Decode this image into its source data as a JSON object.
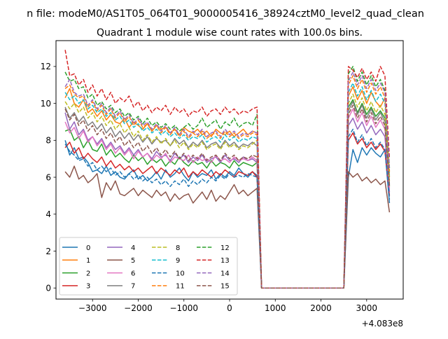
{
  "chart_data": {
    "type": "line",
    "suptitle": "n file: modeM0/AS1T05_064T01_9000005416_38924cztM0_level2_quad_clean",
    "title": "Quadrant 1 module wise count rates with 100.0s bins.",
    "xlabel": "",
    "ylabel": "",
    "x_offset_label": "+4.083e8",
    "xlim": [
      -3800,
      3800
    ],
    "ylim": [
      -0.6,
      13.4
    ],
    "xticks": [
      -3000,
      -2000,
      -1000,
      0,
      1000,
      2000,
      3000
    ],
    "xtick_labels": [
      "−3000",
      "−2000",
      "−1000",
      "0",
      "1000",
      "2000",
      "3000"
    ],
    "yticks": [
      0,
      2,
      4,
      6,
      8,
      10,
      12
    ],
    "ytick_labels": [
      "0",
      "2",
      "4",
      "6",
      "8",
      "10",
      "12"
    ],
    "legend": {
      "location": "lower-left",
      "columns": 4
    },
    "x": {
      "first_start": -3600,
      "first_step": 100,
      "first_count": 43,
      "gap_x": [
        700,
        800,
        900,
        1000,
        1100,
        1200,
        1300,
        1400,
        1500,
        1600,
        1700,
        1800,
        1900,
        2000,
        2100,
        2200,
        2300,
        2400,
        2500
      ],
      "second_start": 2600,
      "second_step": 100,
      "second_count": 10
    },
    "series": [
      {
        "name": "0",
        "color": "#1f77b4",
        "dash": "solid",
        "first": [
          8.0,
          7.2,
          7.6,
          7.0,
          7.1,
          6.8,
          6.3,
          6.4,
          6.2,
          6.6,
          6.1,
          6.3,
          6.0,
          5.9,
          6.2,
          6.4,
          5.9,
          6.1,
          5.8,
          6.0,
          6.3,
          5.9,
          6.4,
          6.0,
          6.2,
          6.5,
          6.1,
          5.8,
          6.3,
          6.0,
          6.2,
          6.1,
          6.4,
          5.9,
          6.2,
          6.0,
          6.3,
          6.1,
          6.5,
          6.2,
          6.0,
          6.3,
          6.1
        ],
        "second": [
          6.0,
          7.5,
          6.8,
          7.6,
          7.2,
          7.6,
          7.3,
          7.1,
          7.5,
          4.6
        ]
      },
      {
        "name": "1",
        "color": "#ff7f0e",
        "dash": "solid",
        "first": [
          10.3,
          10.8,
          10.0,
          9.8,
          10.2,
          9.5,
          9.7,
          9.3,
          9.6,
          9.1,
          9.4,
          9.0,
          8.9,
          9.2,
          8.7,
          9.0,
          8.8,
          8.6,
          8.9,
          8.5,
          8.8,
          8.6,
          8.7,
          8.4,
          8.6,
          8.3,
          8.7,
          8.5,
          8.4,
          8.6,
          8.3,
          8.5,
          8.2,
          8.6,
          8.4,
          8.3,
          8.5,
          8.2,
          8.4,
          8.6,
          8.3,
          8.5,
          8.4
        ],
        "second": [
          10.4,
          10.9,
          10.2,
          10.7,
          10.0,
          10.6,
          10.1,
          9.8,
          10.3,
          6.0
        ]
      },
      {
        "name": "2",
        "color": "#2ca02c",
        "dash": "solid",
        "first": [
          8.5,
          8.6,
          8.0,
          8.2,
          7.6,
          8.0,
          7.5,
          7.4,
          7.8,
          7.2,
          7.5,
          7.1,
          7.3,
          7.0,
          6.8,
          7.2,
          6.9,
          7.1,
          6.7,
          7.0,
          6.8,
          7.0,
          6.6,
          6.9,
          6.7,
          7.1,
          6.8,
          6.6,
          6.9,
          6.7,
          6.8,
          6.5,
          6.9,
          6.6,
          6.8,
          6.7,
          6.5,
          6.9,
          6.6,
          6.8,
          6.7,
          6.6,
          6.8
        ],
        "second": [
          9.8,
          10.2,
          9.5,
          10.0,
          9.4,
          9.8,
          9.3,
          9.6,
          9.2,
          5.5
        ]
      },
      {
        "name": "3",
        "color": "#d62728",
        "dash": "solid",
        "first": [
          7.6,
          7.9,
          7.3,
          7.6,
          7.0,
          7.3,
          7.0,
          6.8,
          7.1,
          6.6,
          6.9,
          6.5,
          6.7,
          6.4,
          6.6,
          6.3,
          6.5,
          6.2,
          6.4,
          6.6,
          6.2,
          6.5,
          6.3,
          6.1,
          6.4,
          6.2,
          6.5,
          6.0,
          6.3,
          6.1,
          6.4,
          6.2,
          6.0,
          6.3,
          6.1,
          6.4,
          6.2,
          6.0,
          6.3,
          6.2,
          6.1,
          6.3,
          6.0
        ],
        "second": [
          8.0,
          8.4,
          7.8,
          8.1,
          7.6,
          7.9,
          7.5,
          7.8,
          7.4,
          5.0
        ]
      },
      {
        "name": "4",
        "color": "#9467bd",
        "dash": "solid",
        "first": [
          9.5,
          8.6,
          9.0,
          8.3,
          8.6,
          8.0,
          8.2,
          7.8,
          8.1,
          7.6,
          7.9,
          7.5,
          7.7,
          7.3,
          7.6,
          7.2,
          7.5,
          7.1,
          7.3,
          7.0,
          7.4,
          7.1,
          7.2,
          6.9,
          7.3,
          7.0,
          7.2,
          6.8,
          7.1,
          6.9,
          7.2,
          6.8,
          7.0,
          7.1,
          6.8,
          7.2,
          6.9,
          7.0,
          6.8,
          7.1,
          6.9,
          7.0,
          6.8
        ],
        "second": [
          8.8,
          9.2,
          8.6,
          9.0,
          8.4,
          8.8,
          8.3,
          8.6,
          8.2,
          5.2
        ]
      },
      {
        "name": "5",
        "color": "#8c564b",
        "dash": "solid",
        "first": [
          6.3,
          6.0,
          6.6,
          5.9,
          6.1,
          5.7,
          5.9,
          6.2,
          4.9,
          5.7,
          5.3,
          5.8,
          5.1,
          5.0,
          5.2,
          5.4,
          5.0,
          5.3,
          5.1,
          4.9,
          5.3,
          5.0,
          5.2,
          4.7,
          5.1,
          4.8,
          5.0,
          5.1,
          4.6,
          4.9,
          5.2,
          4.8,
          5.3,
          4.7,
          5.0,
          4.8,
          5.2,
          5.6,
          5.1,
          5.3,
          5.0,
          5.2,
          5.4
        ],
        "second": [
          6.3,
          6.0,
          6.2,
          5.8,
          6.0,
          5.7,
          5.9,
          5.6,
          5.8,
          4.1
        ]
      },
      {
        "name": "6",
        "color": "#e377c2",
        "dash": "solid",
        "first": [
          9.0,
          8.4,
          8.7,
          8.1,
          8.5,
          7.9,
          8.2,
          7.7,
          8.0,
          7.5,
          7.8,
          7.3,
          7.6,
          7.2,
          7.5,
          7.0,
          7.4,
          7.1,
          7.3,
          6.9,
          7.2,
          7.0,
          7.3,
          6.8,
          7.1,
          7.0,
          6.9,
          7.2,
          6.8,
          7.1,
          6.9,
          7.0,
          6.8,
          7.2,
          6.9,
          7.0,
          6.8,
          7.1,
          6.9,
          7.0,
          6.9,
          7.1,
          6.9
        ],
        "second": [
          9.2,
          9.7,
          9.0,
          9.5,
          8.8,
          9.3,
          8.7,
          9.1,
          8.6,
          5.4
        ]
      },
      {
        "name": "7",
        "color": "#7f7f7f",
        "dash": "solid",
        "first": [
          9.8,
          9.2,
          9.5,
          9.0,
          9.3,
          8.8,
          9.0,
          8.6,
          8.9,
          8.4,
          8.7,
          8.2,
          8.5,
          8.1,
          8.4,
          8.0,
          8.3,
          7.9,
          8.2,
          7.8,
          8.1,
          7.9,
          8.0,
          7.7,
          8.1,
          7.8,
          8.0,
          7.6,
          7.9,
          7.7,
          8.0,
          7.6,
          7.8,
          7.9,
          7.6,
          8.0,
          7.7,
          7.9,
          7.6,
          7.8,
          7.7,
          7.9,
          7.7
        ],
        "second": [
          9.6,
          10.1,
          9.4,
          9.9,
          9.2,
          9.7,
          9.1,
          9.5,
          9.0,
          5.6
        ]
      },
      {
        "name": "8",
        "color": "#bcbd22",
        "dash": "dashed",
        "first": [
          10.1,
          9.7,
          10.0,
          9.5,
          9.8,
          9.2,
          9.5,
          9.0,
          9.3,
          8.8,
          9.1,
          8.6,
          8.9,
          8.4,
          8.7,
          8.2,
          8.5,
          8.0,
          8.3,
          7.9,
          8.2,
          7.8,
          8.1,
          7.7,
          8.0,
          7.6,
          7.9,
          7.5,
          7.8,
          7.6,
          7.9,
          7.5,
          7.7,
          7.8,
          7.5,
          7.9,
          7.6,
          7.8,
          7.5,
          7.7,
          7.6,
          7.8,
          8.0
        ],
        "second": [
          10.0,
          10.5,
          9.8,
          10.3,
          9.6,
          10.1,
          9.5,
          9.9,
          9.4,
          5.8
        ]
      },
      {
        "name": "9",
        "color": "#17becf",
        "dash": "dashed",
        "first": [
          10.6,
          10.2,
          10.4,
          10.0,
          10.2,
          9.7,
          9.9,
          9.5,
          9.7,
          9.3,
          9.5,
          9.1,
          9.3,
          8.9,
          9.1,
          8.7,
          8.9,
          8.5,
          8.7,
          8.4,
          8.6,
          8.3,
          8.5,
          8.2,
          8.4,
          8.1,
          8.3,
          8.0,
          8.2,
          8.1,
          8.3,
          7.9,
          8.1,
          8.2,
          7.9,
          8.3,
          8.0,
          8.2,
          7.9,
          8.1,
          8.0,
          8.2,
          8.1
        ],
        "second": [
          10.6,
          11.1,
          10.4,
          10.9,
          10.2,
          10.7,
          10.1,
          10.5,
          10.0,
          6.1
        ]
      },
      {
        "name": "10",
        "color": "#1f77b4",
        "dash": "dashed",
        "first": [
          7.8,
          7.4,
          7.2,
          6.9,
          7.0,
          6.6,
          6.8,
          6.4,
          6.6,
          6.3,
          6.5,
          6.1,
          6.3,
          6.0,
          6.2,
          5.9,
          6.1,
          5.8,
          6.0,
          5.7,
          5.9,
          5.6,
          5.8,
          5.5,
          5.8,
          5.6,
          5.9,
          5.5,
          5.8,
          5.6,
          5.9,
          5.7,
          6.0,
          5.8,
          6.1,
          5.9,
          6.2,
          6.0,
          6.1,
          6.0,
          6.2,
          6.1,
          6.0
        ],
        "second": [
          8.2,
          8.6,
          7.9,
          8.3,
          7.7,
          8.1,
          7.6,
          7.9,
          7.5,
          4.8
        ]
      },
      {
        "name": "11",
        "color": "#ff7f0e",
        "dash": "dashed",
        "first": [
          10.8,
          11.0,
          10.5,
          10.3,
          10.4,
          9.8,
          10.1,
          9.6,
          9.9,
          9.4,
          9.7,
          9.2,
          9.5,
          9.0,
          9.3,
          8.8,
          9.1,
          8.7,
          8.9,
          8.5,
          8.8,
          8.4,
          8.7,
          8.3,
          8.6,
          8.2,
          8.5,
          8.1,
          8.4,
          8.2,
          8.5,
          8.1,
          8.3,
          8.4,
          8.1,
          8.5,
          8.2,
          8.4,
          8.1,
          8.3,
          8.2,
          8.4,
          8.3
        ],
        "second": [
          11.0,
          11.5,
          10.8,
          11.3,
          10.6,
          11.1,
          10.5,
          10.9,
          10.3,
          6.3
        ]
      },
      {
        "name": "12",
        "color": "#2ca02c",
        "dash": "dashed",
        "first": [
          11.7,
          11.2,
          11.3,
          10.8,
          10.9,
          10.3,
          10.5,
          9.9,
          10.1,
          9.7,
          9.9,
          9.5,
          9.7,
          9.3,
          9.5,
          9.1,
          9.3,
          8.9,
          9.2,
          8.8,
          9.0,
          8.7,
          8.9,
          8.6,
          8.8,
          8.5,
          8.7,
          8.9,
          8.6,
          8.8,
          9.2,
          8.7,
          8.9,
          9.1,
          8.6,
          9.0,
          8.8,
          9.2,
          8.7,
          8.9,
          9.0,
          8.8,
          9.4
        ],
        "second": [
          11.6,
          12.0,
          11.2,
          11.7,
          11.0,
          11.5,
          10.9,
          11.3,
          10.7,
          6.5
        ]
      },
      {
        "name": "13",
        "color": "#d62728",
        "dash": "dashed",
        "first": [
          12.9,
          11.5,
          11.6,
          11.0,
          11.3,
          10.6,
          11.0,
          10.4,
          10.8,
          10.2,
          10.6,
          10.0,
          10.3,
          10.1,
          10.4,
          9.8,
          10.1,
          9.6,
          9.9,
          9.5,
          9.8,
          9.6,
          9.9,
          9.4,
          9.8,
          9.5,
          9.7,
          9.3,
          9.6,
          9.5,
          9.8,
          9.3,
          9.6,
          9.7,
          9.4,
          9.8,
          9.5,
          9.7,
          9.4,
          9.6,
          9.5,
          9.7,
          9.8
        ],
        "second": [
          12.0,
          11.8,
          11.4,
          11.9,
          11.3,
          11.7,
          11.2,
          12.0,
          11.5,
          7.0
        ]
      },
      {
        "name": "14",
        "color": "#9467bd",
        "dash": "dashed",
        "first": [
          10.9,
          11.3,
          10.6,
          10.4,
          10.5,
          9.9,
          10.2,
          9.7,
          10.0,
          9.5,
          9.8,
          9.3,
          9.6,
          9.1,
          9.4,
          8.9,
          9.2,
          8.8,
          9.0,
          8.6,
          8.9,
          8.5,
          8.8,
          8.4,
          8.7,
          8.3,
          8.6,
          8.2,
          8.5,
          8.3,
          8.6,
          8.2,
          8.4,
          8.5,
          8.2,
          8.6,
          8.3,
          8.5,
          8.2,
          8.4,
          8.3,
          8.5,
          8.4
        ],
        "second": [
          11.2,
          11.7,
          11.0,
          11.5,
          10.8,
          11.3,
          10.7,
          11.1,
          10.6,
          6.4
        ]
      },
      {
        "name": "15",
        "color": "#8c564b",
        "dash": "dashed",
        "first": [
          9.7,
          9.1,
          9.4,
          8.8,
          9.1,
          8.5,
          8.8,
          8.3,
          8.6,
          8.1,
          8.4,
          7.9,
          8.2,
          7.7,
          8.0,
          7.6,
          7.9,
          7.4,
          7.7,
          7.3,
          7.6,
          7.2,
          7.5,
          7.1,
          7.4,
          7.0,
          7.3,
          6.9,
          7.2,
          7.0,
          7.3,
          6.9,
          7.1,
          7.2,
          6.9,
          7.3,
          7.0,
          7.2,
          6.9,
          7.1,
          7.0,
          7.2,
          7.1
        ],
        "second": [
          9.4,
          9.9,
          9.2,
          9.7,
          9.0,
          9.5,
          8.9,
          9.3,
          8.8,
          5.5
        ]
      }
    ]
  }
}
